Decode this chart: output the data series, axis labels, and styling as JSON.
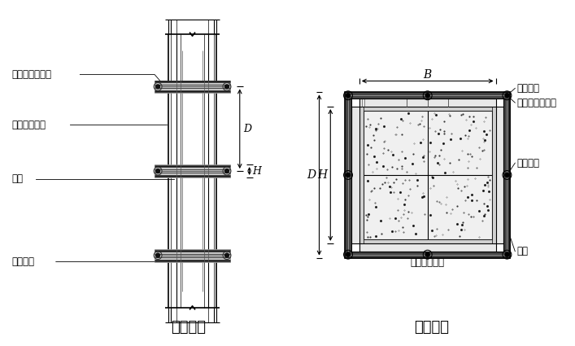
{
  "bg_color": "#ffffff",
  "line_color": "#000000",
  "title_left": "柱立面图",
  "title_right": "柱剖面图",
  "label_zhu_gu": "柱箍（圆钢管）",
  "label_shu_leng": "竖愣（方木）",
  "label_mian_ban": "面板",
  "label_dui_la": "对拉螺栓",
  "dim_B": "B",
  "dim_D": "D",
  "dim_H": "H",
  "font_size_label": 8.5,
  "font_size_title": 13
}
